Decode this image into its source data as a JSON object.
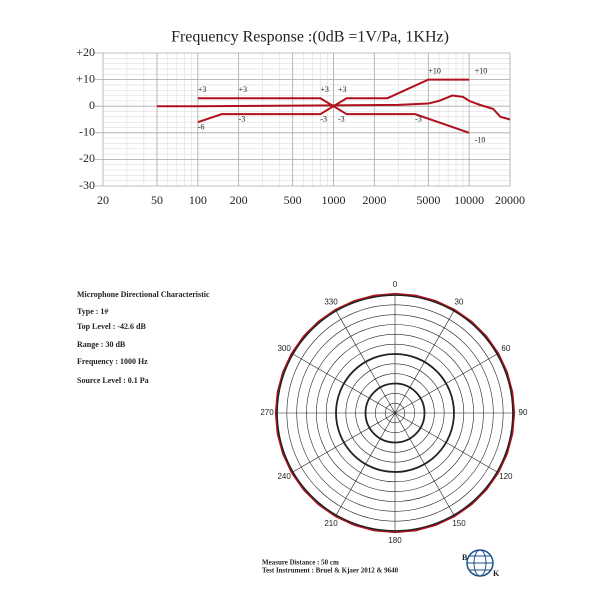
{
  "chart_data": [
    {
      "type": "line",
      "title": "Frequency  Response :(0dB =1V/Pa, 1KHz)",
      "log_x": true,
      "grid": true,
      "xlim": [
        20,
        20000
      ],
      "xticks": [
        20,
        50,
        100,
        200,
        500,
        1000,
        2000,
        5000,
        10000,
        20000
      ],
      "ylim": [
        -30,
        20
      ],
      "yticks": [
        -30,
        -20,
        -10,
        0,
        {
          "value": 10,
          "label": "+10"
        },
        {
          "value": 20,
          "label": "+20"
        }
      ],
      "series": [
        {
          "name": "response",
          "color": "#b0101c",
          "x": [
            50,
            100,
            1000,
            3000,
            5000,
            6000,
            7500,
            9000,
            10000,
            12000,
            15000,
            17000,
            20000
          ],
          "values": [
            0,
            0,
            0.3,
            0.5,
            1,
            2,
            4,
            3.5,
            2,
            0.5,
            -1,
            -4,
            -5
          ]
        },
        {
          "name": "upper",
          "color": "#b0101c",
          "x": [
            100,
            800,
            1000,
            1250,
            2500,
            5000,
            10000
          ],
          "values": [
            3,
            3,
            0,
            3,
            3,
            10,
            10
          ]
        },
        {
          "name": "lower",
          "color": "#b0101c",
          "x": [
            100,
            150,
            800,
            1000,
            1250,
            4000,
            10000
          ],
          "values": [
            -6,
            -3,
            -3,
            0,
            -3,
            -3,
            -10
          ]
        }
      ],
      "annotations": [
        {
          "text": "+3",
          "x": 100,
          "y": 6
        },
        {
          "text": "+3",
          "x": 200,
          "y": 6
        },
        {
          "text": "+3",
          "x": 800,
          "y": 6
        },
        {
          "text": "+3",
          "x": 1080,
          "y": 6
        },
        {
          "text": "-6",
          "x": 100,
          "y": -8
        },
        {
          "text": "-3",
          "x": 200,
          "y": -5
        },
        {
          "text": "-3",
          "x": 800,
          "y": -5
        },
        {
          "text": "-3",
          "x": 1080,
          "y": -5
        },
        {
          "text": "-3",
          "x": 4000,
          "y": -5
        },
        {
          "text": "+10",
          "x": 5000,
          "y": 13
        },
        {
          "text": "+10",
          "x": 11000,
          "y": 13
        },
        {
          "text": "-10",
          "x": 11000,
          "y": -13
        }
      ]
    },
    {
      "type": "polar",
      "rlim": [
        -30,
        0
      ],
      "color": "#b0101c",
      "thetaticks": [
        0,
        30,
        60,
        90,
        120,
        150,
        180,
        210,
        240,
        270,
        300,
        330
      ],
      "theta": [
        0,
        10,
        20,
        30,
        40,
        50,
        60,
        70,
        80,
        90,
        100,
        110,
        120,
        130,
        140,
        150,
        160,
        170,
        180,
        190,
        200,
        210,
        220,
        230,
        240,
        250,
        260,
        270,
        280,
        290,
        300,
        310,
        320,
        330,
        340,
        350
      ],
      "values": [
        0,
        0,
        0,
        0,
        0,
        0,
        0,
        0,
        0,
        0,
        0,
        0,
        0,
        0,
        0,
        0,
        0,
        0,
        0,
        0,
        0,
        0,
        0,
        0,
        0,
        0,
        0,
        0,
        0,
        0,
        0,
        0,
        0,
        0,
        0,
        0
      ]
    }
  ],
  "info": {
    "heading": "Microphone Directional Characteristic",
    "lines": [
      "Type : 1#",
      "Top Level : -42.6 dB",
      "Range : 30 dB",
      "Frequency : 1000 Hz",
      "Source Level : 0.1 Pa"
    ],
    "footer": [
      "Measure Distance : 50 cm",
      "Test Instrument : Bruel & Kjaer 2012 & 9640"
    ],
    "logo": [
      "B",
      "K"
    ]
  }
}
